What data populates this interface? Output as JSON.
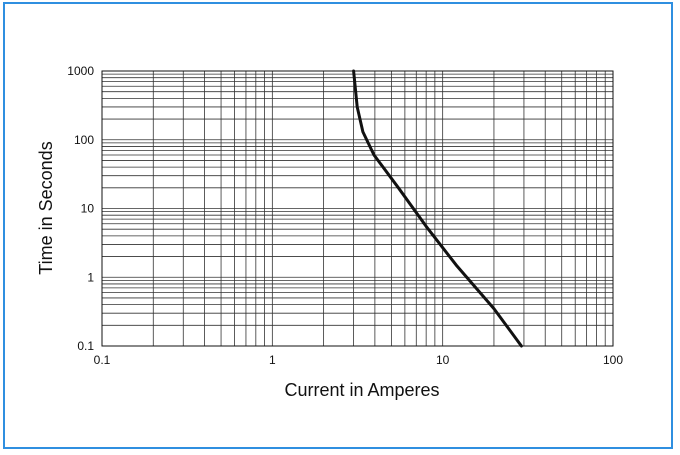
{
  "chart_data": {
    "type": "line",
    "title": "",
    "xlabel": "Current in Amperes",
    "ylabel": "Time in Seconds",
    "x_scale": "log",
    "y_scale": "log",
    "xlim": [
      0.1,
      100
    ],
    "ylim": [
      0.1,
      1000
    ],
    "x_ticks": [
      0.1,
      1,
      10,
      100
    ],
    "x_tick_labels": [
      "0.1",
      "1",
      "10",
      "100"
    ],
    "y_ticks": [
      1000,
      100,
      10,
      1,
      0.1
    ],
    "y_tick_labels": [
      "1000",
      "100",
      "10",
      "1",
      "0.1"
    ],
    "grid": true,
    "legend": "none",
    "series": [
      {
        "x": [
          3.0,
          3.15,
          3.4,
          3.95,
          5.5,
          8.0,
          12.0,
          20.0,
          29.0
        ],
        "y": [
          1000,
          300,
          130,
          60,
          20,
          5.5,
          1.5,
          0.35,
          0.1
        ]
      }
    ],
    "colors": {
      "line": "#111111",
      "grid": "#333333",
      "frame": "#2f8fe0"
    }
  }
}
